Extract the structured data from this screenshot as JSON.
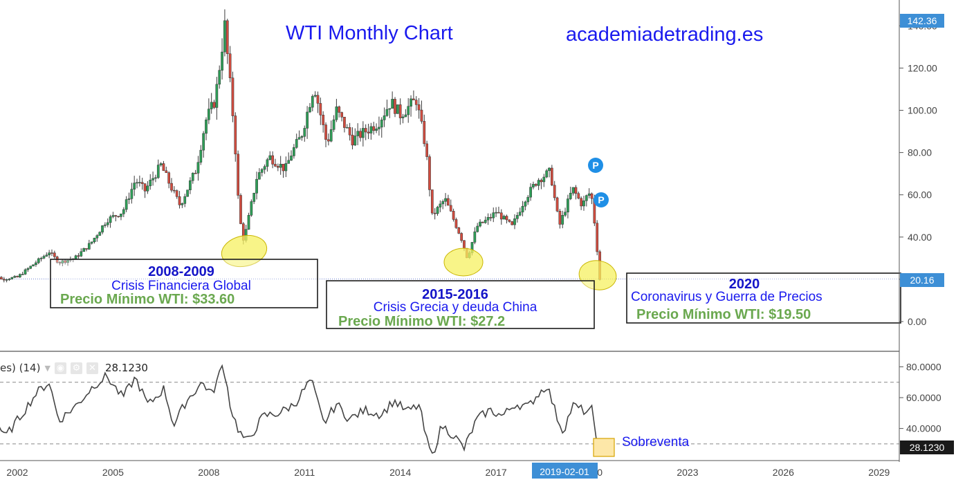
{
  "header": {
    "title": "WTI Monthly Chart",
    "site": "academiadetrading.es"
  },
  "price_axis": {
    "tick_labels": [
      "0.00",
      "20.00",
      "40.00",
      "60.00",
      "80.00",
      "100.00",
      "120.00",
      "140.00"
    ],
    "last_price_label": "142.36",
    "current_price_label": "20.16"
  },
  "rsi_panel": {
    "header_label": "es) (14)",
    "value_label": "28.1230",
    "tick_labels": [
      "40.0000",
      "60.0000",
      "80.0000"
    ],
    "current_label": "28.1230",
    "oversold_label": "Sobreventa"
  },
  "time_axis": {
    "labels": [
      "2002",
      "2005",
      "2008",
      "2011",
      "2014",
      "2017",
      "2020",
      "2023",
      "2026",
      "2029"
    ],
    "crosshair_label": "2019-02-01"
  },
  "annotations": [
    {
      "period": "2008-2009",
      "description": "Crisis Financiera Global",
      "low": "Precio Mínimo WTI: $33.60"
    },
    {
      "period": "2015-2016",
      "description": "Crisis Grecia y deuda China",
      "low": "Precio Mínimo WTI: $27.2"
    },
    {
      "period": "2020",
      "description": "Coronavirus y Guerra de Precios",
      "low": "Precio Mínimo WTI: $19.50"
    }
  ],
  "markers": [
    "P",
    "P"
  ],
  "colors": {
    "up_candle": "#2e9e57",
    "down_candle": "#d24c3f",
    "title_blue": "#1a1aee",
    "green_text": "#6aa84f",
    "highlight_yellow": "#f5f060",
    "axis_badge_blue": "#3d8fd6",
    "marker_blue": "#1f8fe6",
    "rsi_line": "#444444"
  },
  "chart_data": [
    {
      "type": "candlestick",
      "title": "WTI Monthly Chart",
      "ylim": [
        -2,
        146
      ],
      "xlim": [
        2000.9,
        2029.9
      ],
      "price_path": [
        [
          2001.0,
          28
        ],
        [
          2001.5,
          20
        ],
        [
          2002.0,
          21
        ],
        [
          2002.5,
          27
        ],
        [
          2003.0,
          33
        ],
        [
          2003.3,
          28
        ],
        [
          2003.8,
          30
        ],
        [
          2004.3,
          37
        ],
        [
          2004.8,
          48
        ],
        [
          2005.3,
          52
        ],
        [
          2005.7,
          67
        ],
        [
          2006.0,
          62
        ],
        [
          2006.5,
          74
        ],
        [
          2006.9,
          61
        ],
        [
          2007.1,
          55
        ],
        [
          2007.6,
          72
        ],
        [
          2007.9,
          95
        ],
        [
          2008.2,
          105
        ],
        [
          2008.5,
          140
        ],
        [
          2008.8,
          90
        ],
        [
          2008.95,
          50
        ],
        [
          2009.1,
          38
        ],
        [
          2009.5,
          68
        ],
        [
          2009.9,
          78
        ],
        [
          2010.4,
          72
        ],
        [
          2010.6,
          80
        ],
        [
          2010.9,
          88
        ],
        [
          2011.3,
          112
        ],
        [
          2011.7,
          84
        ],
        [
          2012.0,
          100
        ],
        [
          2012.5,
          86
        ],
        [
          2012.9,
          90
        ],
        [
          2013.3,
          94
        ],
        [
          2013.7,
          104
        ],
        [
          2014.0,
          98
        ],
        [
          2014.5,
          105
        ],
        [
          2014.8,
          82
        ],
        [
          2015.0,
          50
        ],
        [
          2015.4,
          58
        ],
        [
          2015.9,
          40
        ],
        [
          2016.1,
          30
        ],
        [
          2016.4,
          45
        ],
        [
          2016.8,
          49
        ],
        [
          2017.0,
          52
        ],
        [
          2017.5,
          45
        ],
        [
          2017.9,
          58
        ],
        [
          2018.3,
          67
        ],
        [
          2018.7,
          71
        ],
        [
          2018.9,
          52
        ],
        [
          2019.0,
          46
        ],
        [
          2019.4,
          63
        ],
        [
          2019.7,
          55
        ],
        [
          2019.9,
          61
        ],
        [
          2020.0,
          58
        ],
        [
          2020.1,
          45
        ],
        [
          2020.25,
          20
        ]
      ],
      "rsi_path": [
        [
          2001.0,
          62
        ],
        [
          2001.6,
          34
        ],
        [
          2002.1,
          48
        ],
        [
          2002.6,
          63
        ],
        [
          2003.0,
          70
        ],
        [
          2003.3,
          45
        ],
        [
          2003.9,
          56
        ],
        [
          2004.4,
          68
        ],
        [
          2004.8,
          74
        ],
        [
          2005.3,
          60
        ],
        [
          2005.7,
          73
        ],
        [
          2006.1,
          55
        ],
        [
          2006.6,
          66
        ],
        [
          2006.9,
          42
        ],
        [
          2007.3,
          58
        ],
        [
          2007.8,
          70
        ],
        [
          2008.1,
          62
        ],
        [
          2008.45,
          82
        ],
        [
          2008.7,
          52
        ],
        [
          2008.95,
          38
        ],
        [
          2009.2,
          31
        ],
        [
          2009.7,
          48
        ],
        [
          2010.2,
          50
        ],
        [
          2010.7,
          56
        ],
        [
          2011.2,
          72
        ],
        [
          2011.6,
          43
        ],
        [
          2012.0,
          56
        ],
        [
          2012.4,
          46
        ],
        [
          2012.9,
          52
        ],
        [
          2013.4,
          49
        ],
        [
          2013.8,
          58
        ],
        [
          2014.2,
          51
        ],
        [
          2014.6,
          55
        ],
        [
          2014.8,
          34
        ],
        [
          2015.0,
          22
        ],
        [
          2015.3,
          42
        ],
        [
          2015.7,
          35
        ],
        [
          2016.0,
          27
        ],
        [
          2016.4,
          46
        ],
        [
          2016.8,
          52
        ],
        [
          2017.2,
          48
        ],
        [
          2017.6,
          56
        ],
        [
          2018.0,
          54
        ],
        [
          2018.3,
          62
        ],
        [
          2018.6,
          68
        ],
        [
          2018.9,
          48
        ],
        [
          2019.1,
          38
        ],
        [
          2019.4,
          55
        ],
        [
          2019.9,
          50
        ],
        [
          2020.0,
          52
        ],
        [
          2020.2,
          28
        ]
      ],
      "rsi_levels": [
        30,
        70
      ],
      "rsi_ylim": [
        20,
        84
      ]
    }
  ]
}
